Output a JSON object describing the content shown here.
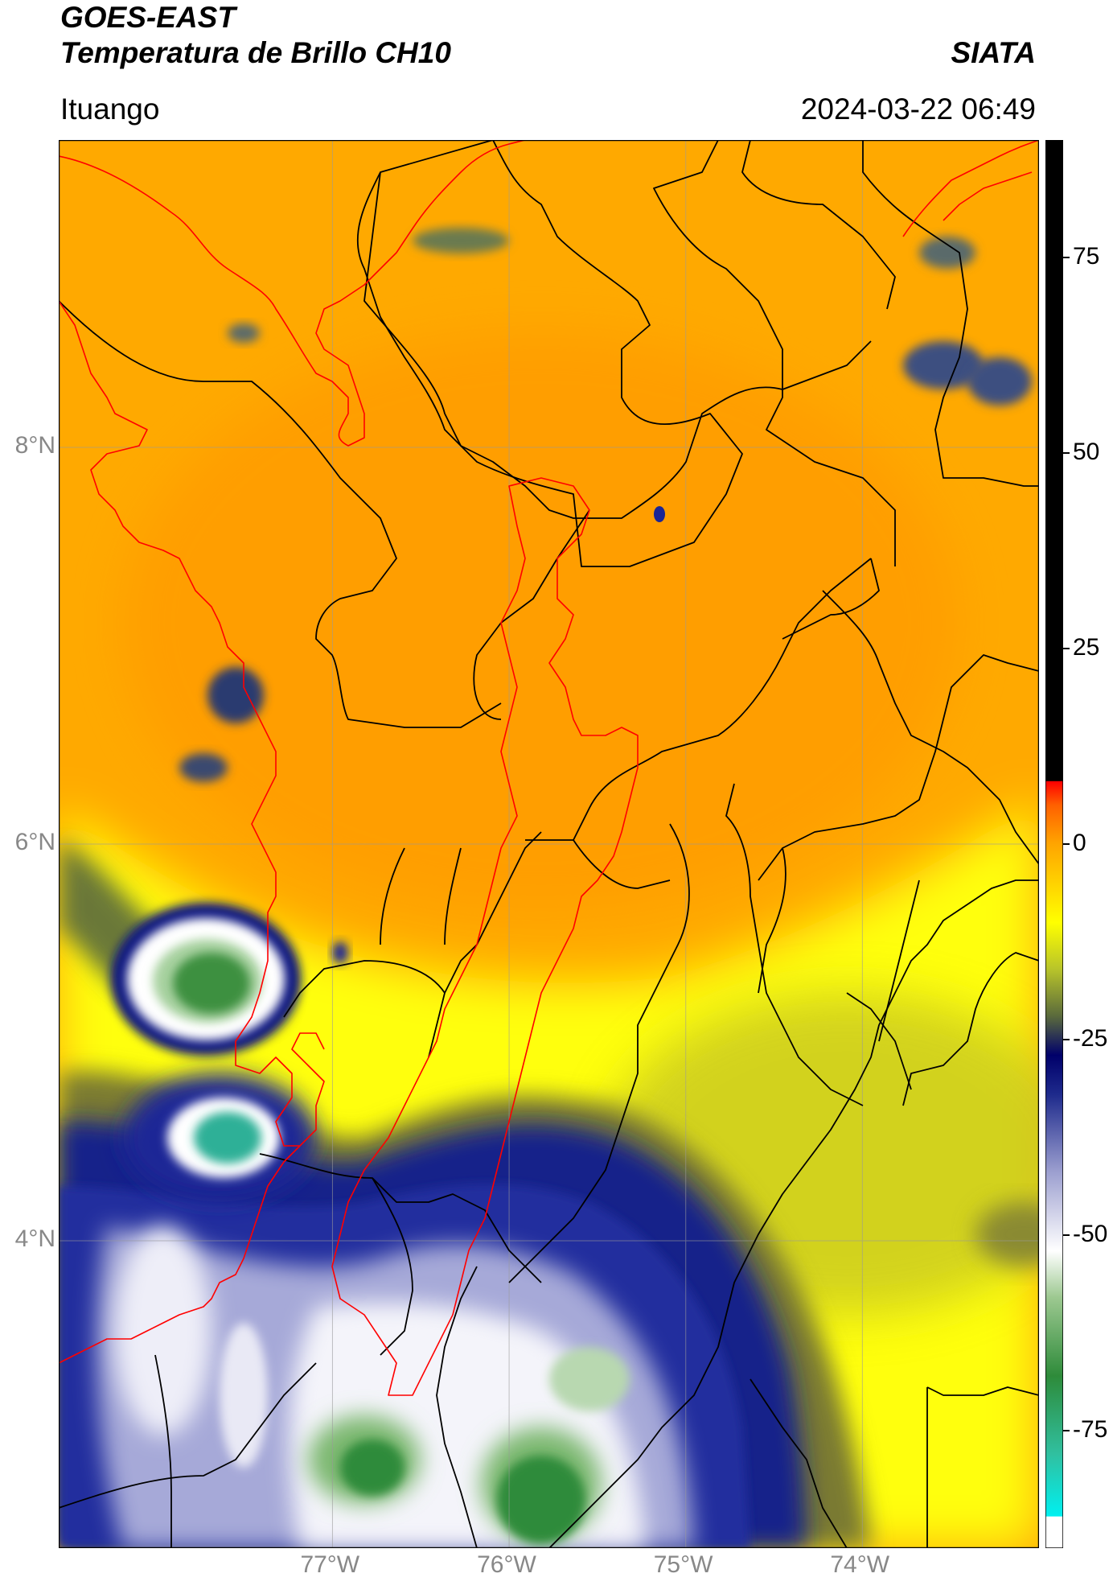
{
  "header": {
    "source": "GOES-EAST",
    "product": "Temperatura de Brillo CH10",
    "org": "SIATA",
    "location": "Ituango",
    "datetime": "2024-03-22 06:49"
  },
  "map": {
    "extent": {
      "lon_min": -78.55,
      "lon_max": -73.0,
      "lat_min": 2.45,
      "lat_max": 9.55
    },
    "lat_ticks": [
      {
        "value": 8,
        "label": "8°N"
      },
      {
        "value": 6,
        "label": "6°N"
      },
      {
        "value": 4,
        "label": "4°N"
      }
    ],
    "lon_ticks": [
      {
        "value": -77,
        "label": "77°W"
      },
      {
        "value": -76,
        "label": "76°W"
      },
      {
        "value": -75,
        "label": "75°W"
      },
      {
        "value": -74,
        "label": "74°W"
      }
    ],
    "gridlines": true,
    "colors": {
      "coastline": "#ff0000",
      "basin": "#ff0000",
      "borders": "#000000"
    }
  },
  "colorbar": {
    "vmin": -90,
    "vmax": 90,
    "ticks": [
      {
        "value": 75,
        "label": "75"
      },
      {
        "value": 50,
        "label": "50"
      },
      {
        "value": 25,
        "label": "25"
      },
      {
        "value": 0,
        "label": "0"
      },
      {
        "value": -25,
        "label": "-25"
      },
      {
        "value": -50,
        "label": "-50"
      },
      {
        "value": -75,
        "label": "-75"
      }
    ],
    "stops": [
      {
        "v": -90,
        "c": "#ffffff"
      },
      {
        "v": -86,
        "c": "#ffffff"
      },
      {
        "v": -85.9,
        "c": "#00f0f0"
      },
      {
        "v": -78,
        "c": "#30c0a0"
      },
      {
        "v": -68,
        "c": "#2e8b3a"
      },
      {
        "v": -58,
        "c": "#9cc890"
      },
      {
        "v": -52,
        "c": "#ffffff"
      },
      {
        "v": -42,
        "c": "#9da0d0"
      },
      {
        "v": -32,
        "c": "#1e2a8c"
      },
      {
        "v": -27,
        "c": "#00006a"
      },
      {
        "v": -22,
        "c": "#5a6a3c"
      },
      {
        "v": -16,
        "c": "#b8c42a"
      },
      {
        "v": -10,
        "c": "#ffff00"
      },
      {
        "v": 0,
        "c": "#ffa500"
      },
      {
        "v": 5,
        "c": "#ff6000"
      },
      {
        "v": 8,
        "c": "#ff0000"
      },
      {
        "v": 8.1,
        "c": "#000000"
      },
      {
        "v": 90,
        "c": "#000000"
      }
    ]
  }
}
